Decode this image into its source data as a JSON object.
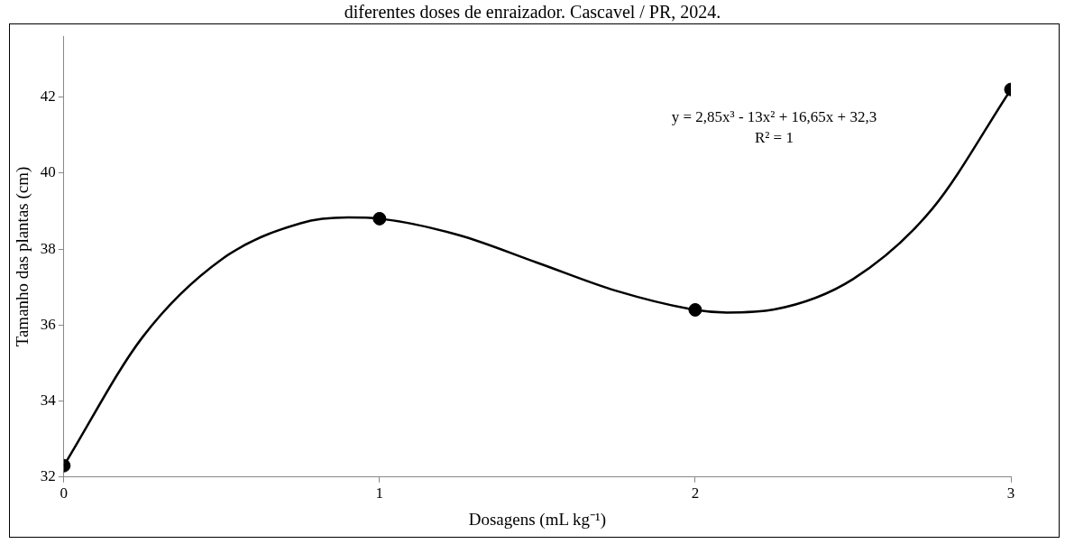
{
  "chart_data": {
    "type": "scatter",
    "title": "diferentes doses de enraizador. Cascavel / PR, 2024.",
    "xlabel": "Dosagens (mL kg⁻¹)",
    "ylabel": "Tamanho das plantas (cm)",
    "annotations": [
      "y = 2,85x³ - 13x² + 16,65x + 32,3",
      "R² = 1"
    ],
    "series": [
      {
        "type": "line",
        "color": "#000000",
        "marker": "none",
        "x": [
          0,
          0.25,
          0.5,
          0.75,
          0.9,
          1,
          1.25,
          1.5,
          1.75,
          2,
          2.1,
          2.25,
          2.5,
          2.75,
          3
        ],
        "values": [
          32.3,
          35.69,
          37.73,
          38.68,
          38.83,
          38.8,
          38.37,
          37.64,
          36.9,
          36.4,
          36.33,
          36.41,
          37.21,
          39.05,
          42.2
        ]
      },
      {
        "type": "scatter",
        "color": "#000000",
        "marker": "circle",
        "x": [
          0,
          1,
          2,
          3
        ],
        "values": [
          32.3,
          38.8,
          36.4,
          42.2
        ]
      }
    ],
    "xlim": [
      0,
      3
    ],
    "xticks": [
      0,
      1,
      2,
      3
    ],
    "ylim": [
      32,
      43.6
    ],
    "yticks": [
      32,
      34,
      36,
      38,
      40,
      42
    ],
    "grid": false,
    "legend": false
  }
}
